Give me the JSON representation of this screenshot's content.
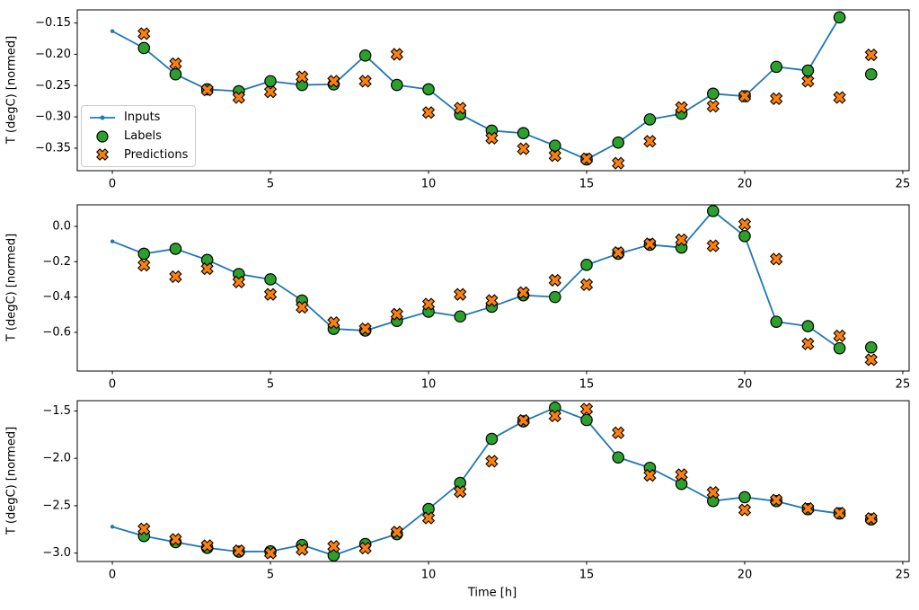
{
  "figure": {
    "xlabel": "Time [h]",
    "background": "#ffffff",
    "spine_color": "#000000"
  },
  "legend": {
    "items": [
      {
        "label": "Inputs",
        "marker": "line-dot",
        "color": "#1f77b4"
      },
      {
        "label": "Labels",
        "marker": "circle",
        "color": "#2ca02c"
      },
      {
        "label": "Predictions",
        "marker": "x",
        "color": "#ff7f0e"
      }
    ]
  },
  "chart_data": [
    {
      "type": "line",
      "title": "",
      "ylabel": "T (degC) [normed]",
      "xlabel": "",
      "xlim": [
        -1.11,
        25.2
      ],
      "ylim": [
        -0.386,
        -0.129
      ],
      "grid": false,
      "legend_position": "center left",
      "xticks": {
        "values": [
          0,
          5,
          10,
          15,
          20,
          25
        ],
        "labels": [
          "0",
          "5",
          "10",
          "15",
          "20",
          "25"
        ]
      },
      "yticks": {
        "values": [
          -0.15,
          -0.2,
          -0.25,
          -0.3,
          -0.35
        ],
        "labels": [
          "−0.15",
          "−0.20",
          "−0.25",
          "−0.30",
          "−0.35"
        ]
      },
      "series": [
        {
          "name": "Inputs",
          "type": "line-dot",
          "color": "#1f77b4",
          "x": [
            0,
            1,
            2,
            3,
            4,
            5,
            6,
            7,
            8,
            9,
            10,
            11,
            12,
            13,
            14,
            15,
            16,
            17,
            18,
            19,
            20,
            21,
            22,
            23
          ],
          "y": [
            -0.163,
            -0.19,
            -0.232,
            -0.256,
            -0.259,
            -0.243,
            -0.249,
            -0.248,
            -0.202,
            -0.249,
            -0.256,
            -0.296,
            -0.322,
            -0.326,
            -0.346,
            -0.368,
            -0.341,
            -0.304,
            -0.295,
            -0.263,
            -0.267,
            -0.22,
            -0.226,
            -0.141
          ]
        },
        {
          "name": "Labels",
          "type": "scatter-circle",
          "color": "#2ca02c",
          "x": [
            1,
            2,
            3,
            4,
            5,
            6,
            7,
            8,
            9,
            10,
            11,
            12,
            13,
            14,
            15,
            16,
            17,
            18,
            19,
            20,
            21,
            22,
            23,
            24
          ],
          "y": [
            -0.19,
            -0.232,
            -0.256,
            -0.259,
            -0.243,
            -0.249,
            -0.248,
            -0.202,
            -0.249,
            -0.256,
            -0.296,
            -0.322,
            -0.326,
            -0.346,
            -0.368,
            -0.341,
            -0.304,
            -0.295,
            -0.263,
            -0.267,
            -0.22,
            -0.226,
            -0.141,
            -0.232
          ]
        },
        {
          "name": "Predictions",
          "type": "scatter-x",
          "color": "#ff7f0e",
          "x": [
            1,
            2,
            3,
            4,
            5,
            6,
            7,
            8,
            9,
            10,
            11,
            12,
            13,
            14,
            15,
            16,
            17,
            18,
            19,
            20,
            21,
            22,
            23,
            24
          ],
          "y": [
            -0.167,
            -0.215,
            -0.257,
            -0.269,
            -0.26,
            -0.236,
            -0.243,
            -0.243,
            -0.2,
            -0.293,
            -0.286,
            -0.334,
            -0.351,
            -0.362,
            -0.367,
            -0.374,
            -0.339,
            -0.285,
            -0.283,
            -0.267,
            -0.271,
            -0.243,
            -0.269,
            -0.201
          ]
        }
      ]
    },
    {
      "type": "line",
      "title": "",
      "ylabel": "T (degC) [normed]",
      "xlabel": "",
      "xlim": [
        -1.11,
        25.2
      ],
      "ylim": [
        -0.819,
        0.122
      ],
      "grid": false,
      "legend_position": "none",
      "xticks": {
        "values": [
          0,
          5,
          10,
          15,
          20,
          25
        ],
        "labels": [
          "0",
          "5",
          "10",
          "15",
          "20",
          "25"
        ]
      },
      "yticks": {
        "values": [
          0.0,
          -0.2,
          -0.4,
          -0.6
        ],
        "labels": [
          "0.0",
          "−0.2",
          "−0.4",
          "−0.6"
        ]
      },
      "series": [
        {
          "name": "Inputs",
          "type": "line-dot",
          "color": "#1f77b4",
          "x": [
            0,
            1,
            2,
            3,
            4,
            5,
            6,
            7,
            8,
            9,
            10,
            11,
            12,
            13,
            14,
            15,
            16,
            17,
            18,
            19,
            20,
            21,
            22,
            23
          ],
          "y": [
            -0.085,
            -0.155,
            -0.127,
            -0.19,
            -0.27,
            -0.3,
            -0.42,
            -0.58,
            -0.59,
            -0.535,
            -0.483,
            -0.51,
            -0.455,
            -0.39,
            -0.4,
            -0.218,
            -0.155,
            -0.104,
            -0.12,
            0.087,
            -0.055,
            -0.54,
            -0.565,
            -0.69
          ]
        },
        {
          "name": "Labels",
          "type": "scatter-circle",
          "color": "#2ca02c",
          "x": [
            1,
            2,
            3,
            4,
            5,
            6,
            7,
            8,
            9,
            10,
            11,
            12,
            13,
            14,
            15,
            16,
            17,
            18,
            19,
            20,
            21,
            22,
            23,
            24
          ],
          "y": [
            -0.155,
            -0.127,
            -0.19,
            -0.27,
            -0.3,
            -0.42,
            -0.58,
            -0.59,
            -0.535,
            -0.483,
            -0.51,
            -0.455,
            -0.39,
            -0.4,
            -0.218,
            -0.155,
            -0.104,
            -0.12,
            0.087,
            -0.055,
            -0.54,
            -0.565,
            -0.69,
            -0.685
          ]
        },
        {
          "name": "Predictions",
          "type": "scatter-x",
          "color": "#ff7f0e",
          "x": [
            1,
            2,
            3,
            4,
            5,
            6,
            7,
            8,
            9,
            10,
            11,
            12,
            13,
            14,
            15,
            16,
            17,
            18,
            19,
            20,
            21,
            22,
            23,
            24
          ],
          "y": [
            -0.22,
            -0.285,
            -0.24,
            -0.315,
            -0.385,
            -0.458,
            -0.545,
            -0.58,
            -0.497,
            -0.44,
            -0.385,
            -0.42,
            -0.375,
            -0.305,
            -0.33,
            -0.148,
            -0.099,
            -0.076,
            -0.11,
            0.012,
            -0.185,
            -0.665,
            -0.62,
            -0.755
          ]
        }
      ]
    },
    {
      "type": "line",
      "title": "",
      "ylabel": "T (degC) [normed]",
      "xlabel": "Time [h]",
      "xlim": [
        -1.11,
        25.2
      ],
      "ylim": [
        -3.089,
        -1.391
      ],
      "grid": false,
      "legend_position": "none",
      "xticks": {
        "values": [
          0,
          5,
          10,
          15,
          20,
          25
        ],
        "labels": [
          "0",
          "5",
          "10",
          "15",
          "20",
          "25"
        ]
      },
      "yticks": {
        "values": [
          -1.5,
          -2.0,
          -2.5,
          -3.0
        ],
        "labels": [
          "−1.5",
          "−2.0",
          "−2.5",
          "−3.0"
        ]
      },
      "series": [
        {
          "name": "Inputs",
          "type": "line-dot",
          "color": "#1f77b4",
          "x": [
            0,
            1,
            2,
            3,
            4,
            5,
            6,
            7,
            8,
            9,
            10,
            11,
            12,
            13,
            14,
            15,
            16,
            17,
            18,
            19,
            20,
            21,
            22,
            23
          ],
          "y": [
            -2.722,
            -2.82,
            -2.885,
            -2.945,
            -2.985,
            -2.982,
            -2.915,
            -3.025,
            -2.905,
            -2.8,
            -2.535,
            -2.26,
            -1.795,
            -1.61,
            -1.465,
            -1.595,
            -1.99,
            -2.1,
            -2.27,
            -2.45,
            -2.41,
            -2.452,
            -2.537,
            -2.582
          ]
        },
        {
          "name": "Labels",
          "type": "scatter-circle",
          "color": "#2ca02c",
          "x": [
            1,
            2,
            3,
            4,
            5,
            6,
            7,
            8,
            9,
            10,
            11,
            12,
            13,
            14,
            15,
            16,
            17,
            18,
            19,
            20,
            21,
            22,
            23,
            24
          ],
          "y": [
            -2.82,
            -2.885,
            -2.945,
            -2.985,
            -2.982,
            -2.915,
            -3.025,
            -2.905,
            -2.8,
            -2.535,
            -2.26,
            -1.795,
            -1.61,
            -1.465,
            -1.595,
            -1.99,
            -2.1,
            -2.27,
            -2.45,
            -2.41,
            -2.452,
            -2.537,
            -2.582,
            -2.645
          ]
        },
        {
          "name": "Predictions",
          "type": "scatter-x",
          "color": "#ff7f0e",
          "x": [
            1,
            2,
            3,
            4,
            5,
            6,
            7,
            8,
            9,
            10,
            11,
            12,
            13,
            14,
            15,
            16,
            17,
            18,
            19,
            20,
            21,
            22,
            23,
            24
          ],
          "y": [
            -2.745,
            -2.855,
            -2.922,
            -2.975,
            -3.0,
            -2.962,
            -2.93,
            -2.948,
            -2.778,
            -2.63,
            -2.352,
            -2.03,
            -1.6,
            -1.552,
            -1.48,
            -1.73,
            -2.18,
            -2.172,
            -2.36,
            -2.545,
            -2.44,
            -2.53,
            -2.578,
            -2.635
          ]
        }
      ]
    }
  ]
}
